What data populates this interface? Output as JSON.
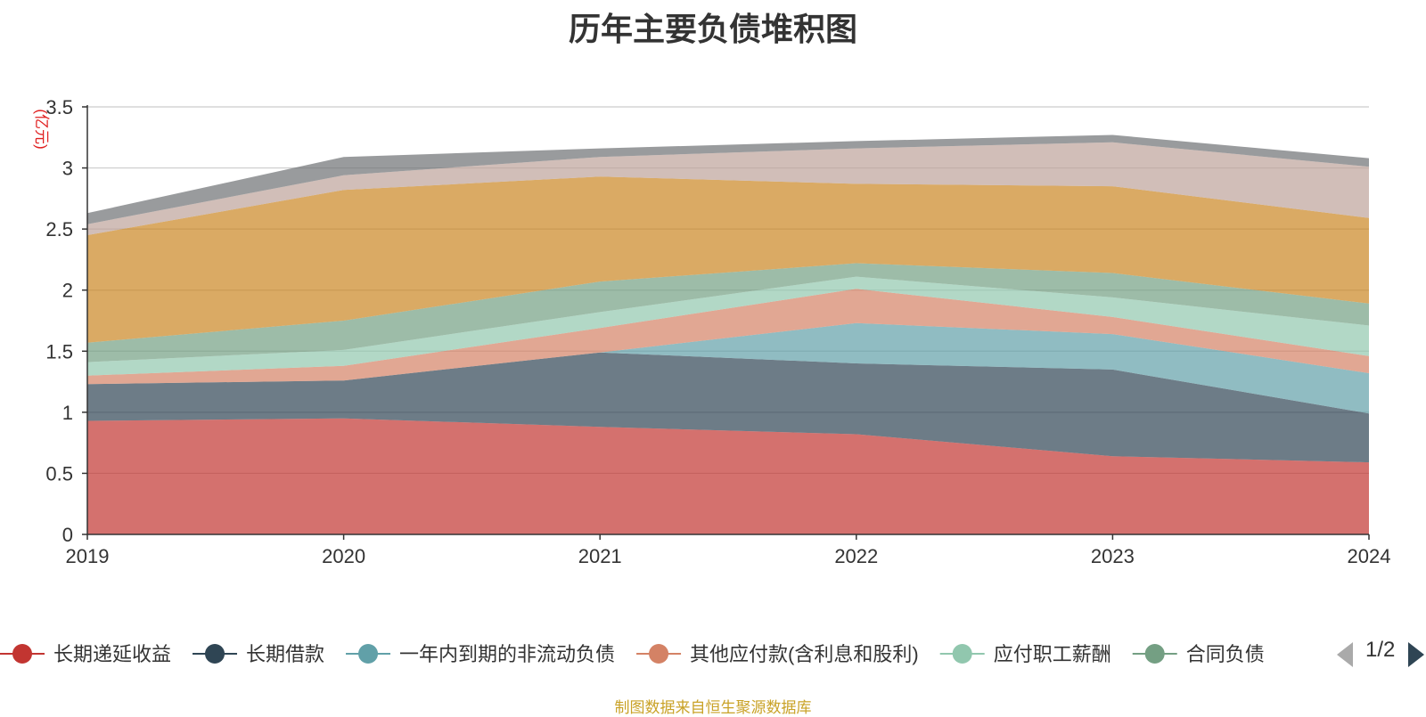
{
  "chart_data": {
    "type": "area",
    "title": "历年主要负债堆积图",
    "ylabel": "(亿元)",
    "xlabel": "",
    "categories": [
      "2019",
      "2020",
      "2021",
      "2022",
      "2023",
      "2024"
    ],
    "ylim": [
      0,
      3.5
    ],
    "yticks": [
      "0",
      "0.5",
      "1",
      "1.5",
      "2",
      "2.5",
      "3",
      "3.5"
    ],
    "grid": true,
    "stacked": true,
    "legend_position": "bottom",
    "series": [
      {
        "name": "长期递延收益",
        "color": "#c23531",
        "values": [
          0.93,
          0.95,
          0.88,
          0.82,
          0.64,
          0.59
        ]
      },
      {
        "name": "长期借款",
        "color": "#2f4554",
        "values": [
          0.3,
          0.31,
          0.61,
          0.58,
          0.71,
          0.4
        ]
      },
      {
        "name": "一年内到期的非流动负债",
        "color": "#61a0a8",
        "values": [
          0.0,
          0.0,
          0.0,
          0.33,
          0.29,
          0.33
        ]
      },
      {
        "name": "其他应付款(含利息和股利)",
        "color": "#d48265",
        "values": [
          0.07,
          0.12,
          0.2,
          0.28,
          0.14,
          0.14
        ]
      },
      {
        "name": "应付职工薪酬",
        "color": "#91c7ae",
        "values": [
          0.11,
          0.13,
          0.13,
          0.1,
          0.16,
          0.25
        ]
      },
      {
        "name": "合同负债",
        "color": "#749f83",
        "values": [
          0.16,
          0.24,
          0.25,
          0.11,
          0.2,
          0.18
        ]
      },
      {
        "name": "",
        "color": "#ca8622",
        "values": [
          0.88,
          1.07,
          0.86,
          0.65,
          0.71,
          0.7
        ]
      },
      {
        "name": "",
        "color": "#bda29a",
        "values": [
          0.09,
          0.12,
          0.16,
          0.29,
          0.36,
          0.42
        ]
      },
      {
        "name": "",
        "color": "#6e7074",
        "values": [
          0.09,
          0.15,
          0.07,
          0.06,
          0.06,
          0.07
        ]
      }
    ]
  },
  "legend": {
    "page_indicator": "1/2"
  },
  "source_note": "制图数据来自恒生聚源数据库"
}
